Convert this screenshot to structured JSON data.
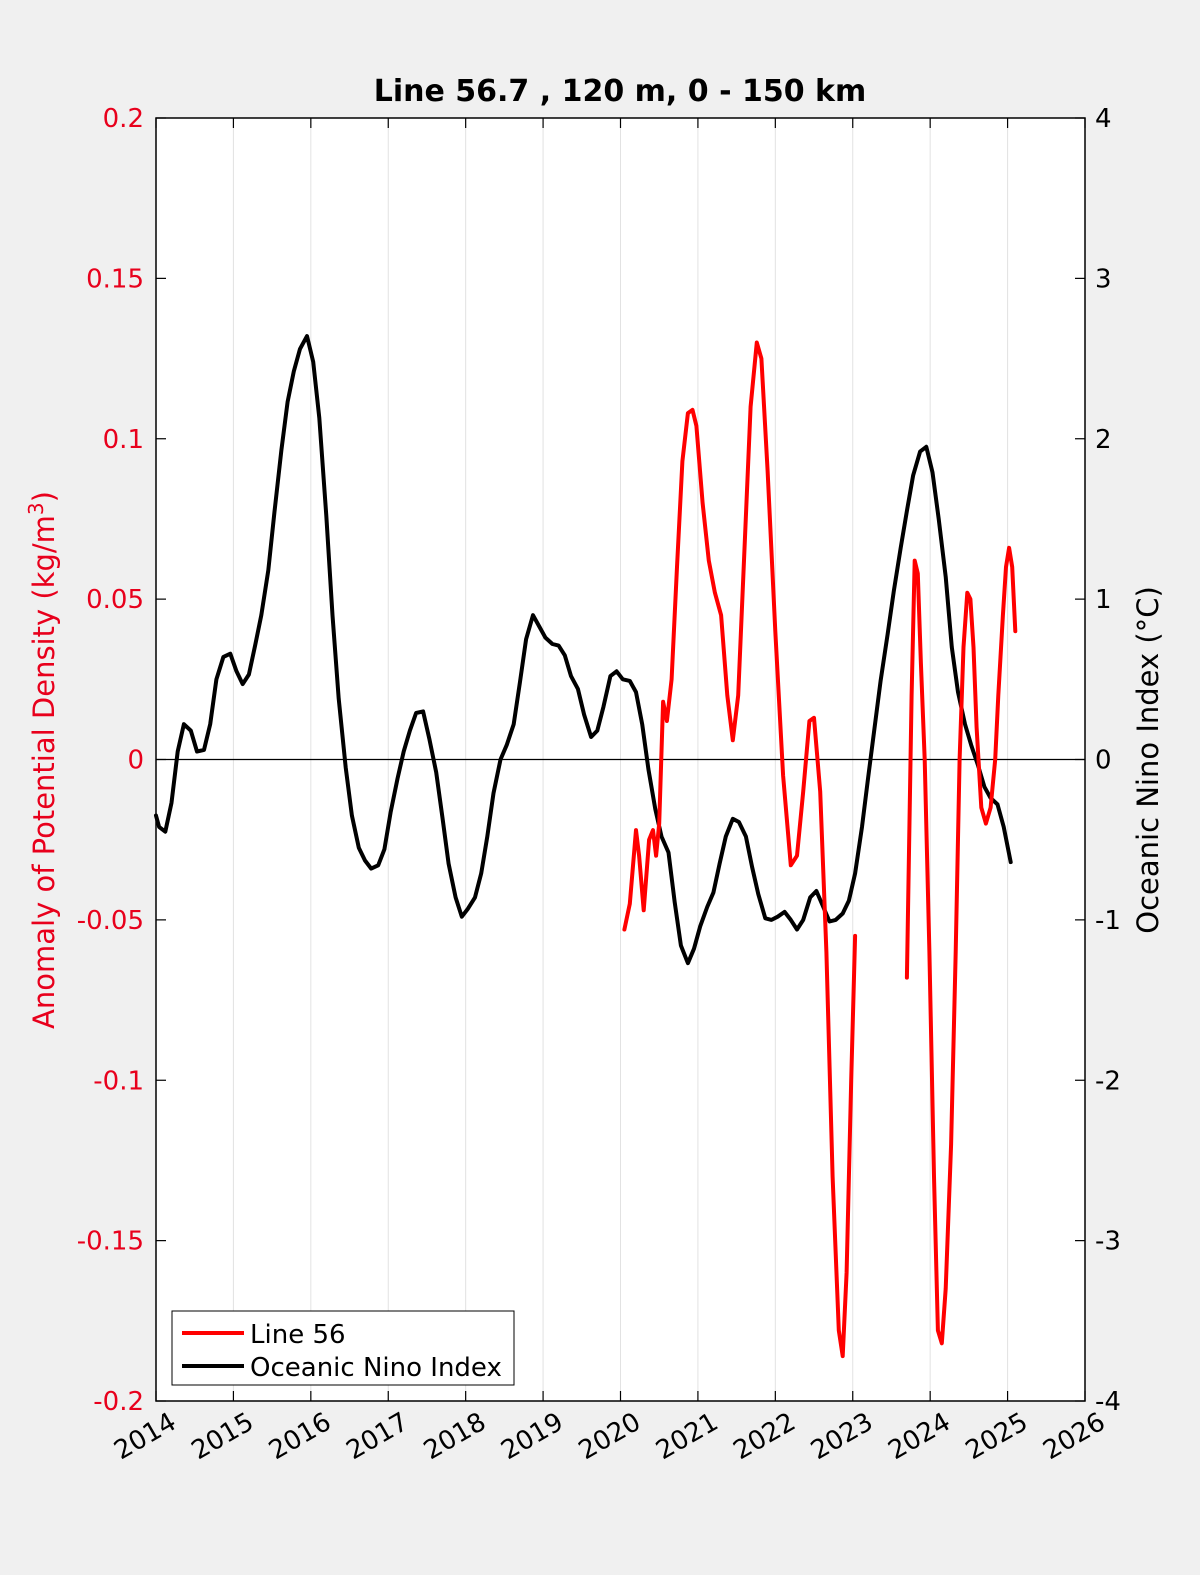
{
  "chart_data": {
    "type": "line",
    "title": "Line 56.7 , 120 m, 0 - 150 km",
    "ylabel_left_main": "Anomaly of Potential Density (kg/m",
    "ylabel_left_sup": "3",
    "ylabel_left_close": ")",
    "ylabel_right": "Oceanic Nino Index (°C)",
    "xlim": [
      2014,
      2026
    ],
    "ylim_left": [
      -0.2,
      0.2
    ],
    "ylim_right": [
      -4,
      4
    ],
    "x_ticks": [
      "2014",
      "2015",
      "2016",
      "2017",
      "2018",
      "2019",
      "2020",
      "2021",
      "2022",
      "2023",
      "2024",
      "2025",
      "2026"
    ],
    "y_left_ticks": [
      "-0.2",
      "-0.15",
      "-0.1",
      "-0.05",
      "0",
      "0.05",
      "0.1",
      "0.15",
      "0.2"
    ],
    "y_right_ticks": [
      "-4",
      "-3",
      "-2",
      "-1",
      "0",
      "1",
      "2",
      "3",
      "4"
    ],
    "grid": "vertical",
    "zero_line": true,
    "legend_placement": "bottom-left",
    "colors": {
      "line56": "#ff0000",
      "oni": "#000000",
      "left_axis": "#e8001c",
      "right_axis": "#000000"
    },
    "series": [
      {
        "name": "Line 56",
        "axis": "left",
        "color": "#ff0000",
        "segments": [
          [
            [
              2020.05,
              -0.053
            ],
            [
              2020.12,
              -0.045
            ],
            [
              2020.2,
              -0.022
            ],
            [
              2020.24,
              -0.03
            ],
            [
              2020.3,
              -0.047
            ],
            [
              2020.37,
              -0.025
            ],
            [
              2020.42,
              -0.022
            ],
            [
              2020.46,
              -0.03
            ],
            [
              2020.5,
              -0.02
            ],
            [
              2020.55,
              0.018
            ],
            [
              2020.6,
              0.012
            ],
            [
              2020.66,
              0.025
            ],
            [
              2020.73,
              0.06
            ],
            [
              2020.8,
              0.093
            ],
            [
              2020.87,
              0.108
            ],
            [
              2020.93,
              0.109
            ],
            [
              2020.98,
              0.104
            ],
            [
              2021.06,
              0.08
            ],
            [
              2021.14,
              0.062
            ],
            [
              2021.22,
              0.052
            ],
            [
              2021.3,
              0.045
            ],
            [
              2021.38,
              0.02
            ],
            [
              2021.45,
              0.006
            ],
            [
              2021.52,
              0.02
            ],
            [
              2021.6,
              0.065
            ],
            [
              2021.68,
              0.11
            ],
            [
              2021.76,
              0.13
            ],
            [
              2021.82,
              0.125
            ],
            [
              2021.9,
              0.09
            ],
            [
              2022.0,
              0.04
            ],
            [
              2022.1,
              -0.005
            ],
            [
              2022.2,
              -0.033
            ],
            [
              2022.28,
              -0.03
            ],
            [
              2022.36,
              -0.01
            ],
            [
              2022.44,
              0.012
            ],
            [
              2022.5,
              0.013
            ],
            [
              2022.58,
              -0.01
            ],
            [
              2022.66,
              -0.06
            ],
            [
              2022.74,
              -0.13
            ],
            [
              2022.82,
              -0.178
            ],
            [
              2022.87,
              -0.186
            ],
            [
              2022.92,
              -0.16
            ],
            [
              2022.98,
              -0.1
            ],
            [
              2023.03,
              -0.055
            ]
          ],
          [
            [
              2023.7,
              -0.068
            ],
            [
              2023.76,
              0.02
            ],
            [
              2023.8,
              0.062
            ],
            [
              2023.84,
              0.058
            ],
            [
              2023.88,
              0.03
            ],
            [
              2023.93,
              0.0
            ],
            [
              2023.99,
              -0.06
            ],
            [
              2024.05,
              -0.13
            ],
            [
              2024.1,
              -0.178
            ],
            [
              2024.15,
              -0.182
            ],
            [
              2024.2,
              -0.165
            ],
            [
              2024.27,
              -0.12
            ],
            [
              2024.33,
              -0.06
            ],
            [
              2024.38,
              0.0
            ],
            [
              2024.43,
              0.035
            ],
            [
              2024.48,
              0.052
            ],
            [
              2024.52,
              0.05
            ],
            [
              2024.56,
              0.035
            ],
            [
              2024.6,
              0.01
            ],
            [
              2024.66,
              -0.015
            ],
            [
              2024.72,
              -0.02
            ],
            [
              2024.78,
              -0.015
            ],
            [
              2024.84,
              0.0
            ],
            [
              2024.88,
              0.02
            ],
            [
              2024.94,
              0.045
            ],
            [
              2024.98,
              0.06
            ],
            [
              2025.02,
              0.066
            ],
            [
              2025.06,
              0.06
            ],
            [
              2025.1,
              0.04
            ]
          ]
        ]
      },
      {
        "name": "Oceanic Nino Index",
        "axis": "right",
        "color": "#000000",
        "segments": [
          [
            [
              2014.0,
              -0.35
            ],
            [
              2014.04,
              -0.42
            ],
            [
              2014.12,
              -0.45
            ],
            [
              2014.2,
              -0.27
            ],
            [
              2014.28,
              0.05
            ],
            [
              2014.36,
              0.22
            ],
            [
              2014.45,
              0.18
            ],
            [
              2014.53,
              0.05
            ],
            [
              2014.62,
              0.06
            ],
            [
              2014.7,
              0.22
            ],
            [
              2014.78,
              0.5
            ],
            [
              2014.87,
              0.64
            ],
            [
              2014.96,
              0.66
            ],
            [
              2015.04,
              0.55
            ],
            [
              2015.12,
              0.47
            ],
            [
              2015.2,
              0.53
            ],
            [
              2015.28,
              0.71
            ],
            [
              2015.36,
              0.9
            ],
            [
              2015.45,
              1.18
            ],
            [
              2015.53,
              1.54
            ],
            [
              2015.62,
              1.93
            ],
            [
              2015.7,
              2.23
            ],
            [
              2015.78,
              2.42
            ],
            [
              2015.86,
              2.56
            ],
            [
              2015.95,
              2.64
            ],
            [
              2016.03,
              2.48
            ],
            [
              2016.11,
              2.13
            ],
            [
              2016.2,
              1.52
            ],
            [
              2016.28,
              0.9
            ],
            [
              2016.36,
              0.38
            ],
            [
              2016.45,
              -0.05
            ],
            [
              2016.53,
              -0.35
            ],
            [
              2016.62,
              -0.55
            ],
            [
              2016.7,
              -0.63
            ],
            [
              2016.78,
              -0.68
            ],
            [
              2016.87,
              -0.66
            ],
            [
              2016.95,
              -0.56
            ],
            [
              2017.03,
              -0.33
            ],
            [
              2017.12,
              -0.12
            ],
            [
              2017.2,
              0.05
            ],
            [
              2017.28,
              0.18
            ],
            [
              2017.36,
              0.29
            ],
            [
              2017.45,
              0.3
            ],
            [
              2017.53,
              0.13
            ],
            [
              2017.62,
              -0.08
            ],
            [
              2017.7,
              -0.36
            ],
            [
              2017.78,
              -0.65
            ],
            [
              2017.87,
              -0.86
            ],
            [
              2017.95,
              -0.98
            ],
            [
              2018.03,
              -0.93
            ],
            [
              2018.12,
              -0.86
            ],
            [
              2018.2,
              -0.71
            ],
            [
              2018.28,
              -0.48
            ],
            [
              2018.36,
              -0.21
            ],
            [
              2018.45,
              0.0
            ],
            [
              2018.53,
              0.09
            ],
            [
              2018.62,
              0.22
            ],
            [
              2018.7,
              0.48
            ],
            [
              2018.78,
              0.75
            ],
            [
              2018.87,
              0.9
            ],
            [
              2018.95,
              0.83
            ],
            [
              2019.03,
              0.76
            ],
            [
              2019.12,
              0.72
            ],
            [
              2019.2,
              0.71
            ],
            [
              2019.28,
              0.65
            ],
            [
              2019.36,
              0.52
            ],
            [
              2019.45,
              0.44
            ],
            [
              2019.53,
              0.28
            ],
            [
              2019.62,
              0.14
            ],
            [
              2019.7,
              0.18
            ],
            [
              2019.78,
              0.33
            ],
            [
              2019.87,
              0.52
            ],
            [
              2019.95,
              0.55
            ],
            [
              2020.03,
              0.5
            ],
            [
              2020.12,
              0.49
            ],
            [
              2020.2,
              0.42
            ],
            [
              2020.28,
              0.22
            ],
            [
              2020.36,
              -0.06
            ],
            [
              2020.45,
              -0.31
            ],
            [
              2020.53,
              -0.48
            ],
            [
              2020.62,
              -0.58
            ],
            [
              2020.7,
              -0.89
            ],
            [
              2020.78,
              -1.16
            ],
            [
              2020.87,
              -1.27
            ],
            [
              2020.95,
              -1.18
            ],
            [
              2021.03,
              -1.04
            ],
            [
              2021.12,
              -0.92
            ],
            [
              2021.2,
              -0.83
            ],
            [
              2021.28,
              -0.65
            ],
            [
              2021.36,
              -0.48
            ],
            [
              2021.45,
              -0.37
            ],
            [
              2021.53,
              -0.39
            ],
            [
              2021.62,
              -0.48
            ],
            [
              2021.7,
              -0.67
            ],
            [
              2021.78,
              -0.84
            ],
            [
              2021.87,
              -0.99
            ],
            [
              2021.95,
              -1.0
            ],
            [
              2022.03,
              -0.98
            ],
            [
              2022.12,
              -0.95
            ],
            [
              2022.2,
              -1.0
            ],
            [
              2022.28,
              -1.06
            ],
            [
              2022.36,
              -1.0
            ],
            [
              2022.45,
              -0.86
            ],
            [
              2022.53,
              -0.82
            ],
            [
              2022.62,
              -0.92
            ],
            [
              2022.7,
              -1.01
            ],
            [
              2022.78,
              -1.0
            ],
            [
              2022.87,
              -0.96
            ],
            [
              2022.95,
              -0.88
            ],
            [
              2023.03,
              -0.71
            ],
            [
              2023.12,
              -0.42
            ],
            [
              2023.2,
              -0.11
            ],
            [
              2023.28,
              0.19
            ],
            [
              2023.36,
              0.49
            ],
            [
              2023.45,
              0.78
            ],
            [
              2023.53,
              1.05
            ],
            [
              2023.62,
              1.32
            ],
            [
              2023.7,
              1.55
            ],
            [
              2023.78,
              1.77
            ],
            [
              2023.87,
              1.92
            ],
            [
              2023.95,
              1.95
            ],
            [
              2024.03,
              1.79
            ],
            [
              2024.11,
              1.5
            ],
            [
              2024.2,
              1.14
            ],
            [
              2024.28,
              0.7
            ],
            [
              2024.36,
              0.42
            ],
            [
              2024.45,
              0.22
            ],
            [
              2024.53,
              0.09
            ],
            [
              2024.62,
              -0.04
            ],
            [
              2024.7,
              -0.17
            ],
            [
              2024.78,
              -0.24
            ],
            [
              2024.87,
              -0.28
            ],
            [
              2024.95,
              -0.42
            ],
            [
              2025.04,
              -0.64
            ]
          ]
        ]
      }
    ]
  }
}
